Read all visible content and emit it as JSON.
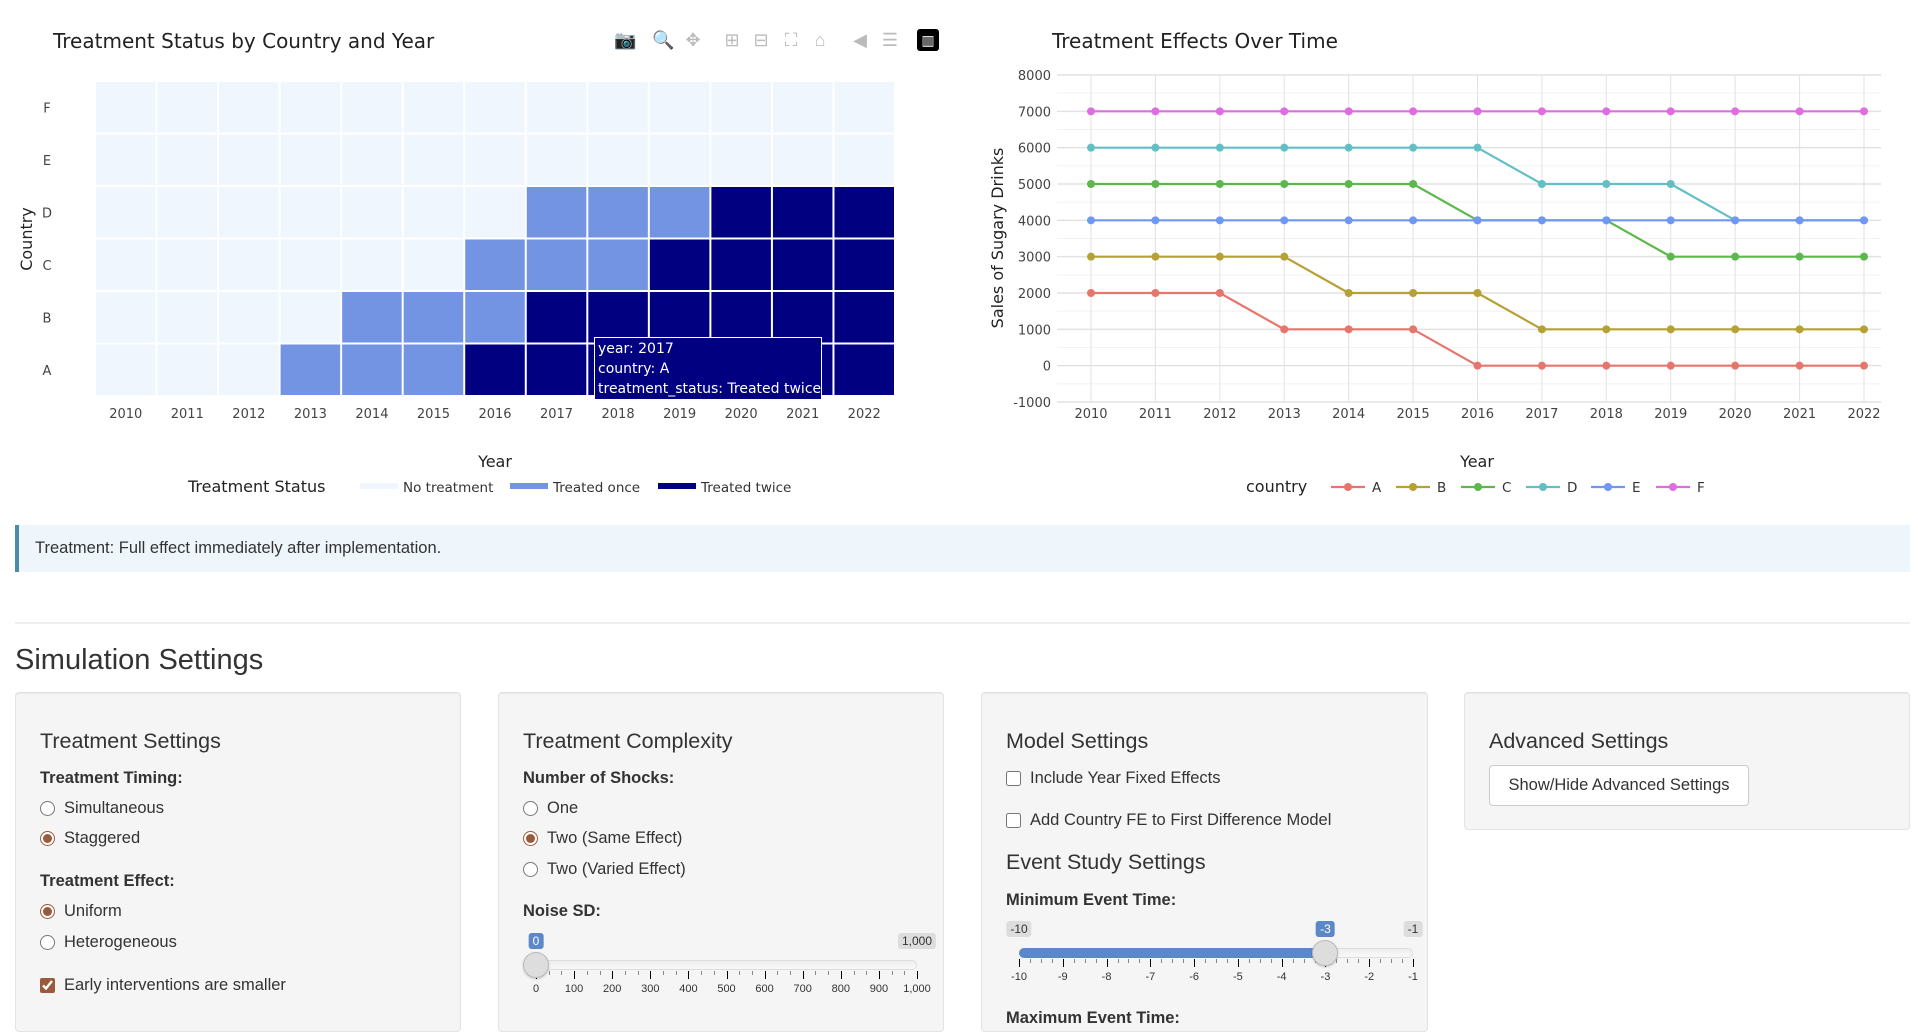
{
  "heatmap": {
    "title": "Treatment Status by Country and Year",
    "toolbar": [
      "camera-icon",
      "zoom-icon",
      "pan-icon",
      "zoom-in-icon",
      "zoom-out-icon",
      "autoscale-icon",
      "home-icon",
      "hover-closest-icon",
      "hover-compare-icon",
      "plotly-logo-icon"
    ],
    "tooltip": {
      "line1": "year: 2017",
      "line2": "country: A",
      "line3": "treatment_status: Treated twice"
    }
  },
  "lines": {
    "title": "Treatment Effects Over Time"
  },
  "chart_data": [
    {
      "type": "heatmap",
      "title": "Treatment Status by Country and Year",
      "xlabel": "Year",
      "ylabel": "Country",
      "x": [
        "2010",
        "2011",
        "2012",
        "2013",
        "2014",
        "2015",
        "2016",
        "2017",
        "2018",
        "2019",
        "2020",
        "2021",
        "2022"
      ],
      "y": [
        "A",
        "B",
        "C",
        "D",
        "E",
        "F"
      ],
      "legend_title": "Treatment Status",
      "levels": [
        "No treatment",
        "Treated once",
        "Treated twice"
      ],
      "colors": [
        "#f0f6fd",
        "#7294e3",
        "#000080"
      ],
      "z": [
        [
          0,
          0,
          0,
          1,
          1,
          1,
          2,
          2,
          2,
          2,
          2,
          2,
          2
        ],
        [
          0,
          0,
          0,
          0,
          1,
          1,
          1,
          2,
          2,
          2,
          2,
          2,
          2
        ],
        [
          0,
          0,
          0,
          0,
          0,
          0,
          1,
          1,
          1,
          2,
          2,
          2,
          2
        ],
        [
          0,
          0,
          0,
          0,
          0,
          0,
          0,
          1,
          1,
          1,
          2,
          2,
          2
        ],
        [
          0,
          0,
          0,
          0,
          0,
          0,
          0,
          0,
          0,
          0,
          0,
          0,
          0
        ],
        [
          0,
          0,
          0,
          0,
          0,
          0,
          0,
          0,
          0,
          0,
          0,
          0,
          0
        ]
      ]
    },
    {
      "type": "line",
      "title": "Treatment Effects Over Time",
      "xlabel": "Year",
      "ylabel": "Sales of Sugary Drinks",
      "ylim": [
        -1000,
        8000
      ],
      "yticks": [
        "8000",
        "7000",
        "6000",
        "5000",
        "4000",
        "3000",
        "2000",
        "1000",
        "0",
        "-1000"
      ],
      "x": [
        "2010",
        "2011",
        "2012",
        "2013",
        "2014",
        "2015",
        "2016",
        "2017",
        "2018",
        "2019",
        "2020",
        "2021",
        "2022"
      ],
      "legend_title": "country",
      "legend_position": "bottom",
      "grid": true,
      "series": [
        {
          "name": "A",
          "color": "#e8756c",
          "values": [
            2000,
            2000,
            2000,
            1000,
            1000,
            1000,
            0,
            0,
            0,
            0,
            0,
            0,
            0
          ]
        },
        {
          "name": "B",
          "color": "#b5a134",
          "values": [
            3000,
            3000,
            3000,
            3000,
            2000,
            2000,
            2000,
            1000,
            1000,
            1000,
            1000,
            1000,
            1000
          ]
        },
        {
          "name": "C",
          "color": "#5cb84a",
          "values": [
            5000,
            5000,
            5000,
            5000,
            5000,
            5000,
            4000,
            4000,
            4000,
            3000,
            3000,
            3000,
            3000
          ]
        },
        {
          "name": "D",
          "color": "#63bfc4",
          "values": [
            6000,
            6000,
            6000,
            6000,
            6000,
            6000,
            6000,
            5000,
            5000,
            5000,
            4000,
            4000,
            4000
          ]
        },
        {
          "name": "E",
          "color": "#6f97f3",
          "values": [
            4000,
            4000,
            4000,
            4000,
            4000,
            4000,
            4000,
            4000,
            4000,
            4000,
            4000,
            4000,
            4000
          ]
        },
        {
          "name": "F",
          "color": "#de6ee0",
          "values": [
            7000,
            7000,
            7000,
            7000,
            7000,
            7000,
            7000,
            7000,
            7000,
            7000,
            7000,
            7000,
            7000
          ]
        }
      ]
    }
  ],
  "info": "Treatment: Full effect immediately after implementation.",
  "section_title": "Simulation Settings",
  "treatment": {
    "title": "Treatment Settings",
    "timing_label": "Treatment Timing:",
    "timing_options": [
      "Simultaneous",
      "Staggered"
    ],
    "timing_selected": 1,
    "effect_label": "Treatment Effect:",
    "effect_options": [
      "Uniform",
      "Heterogeneous"
    ],
    "effect_selected": 0,
    "early_label": "Early interventions are smaller",
    "early_checked": true
  },
  "complexity": {
    "title": "Treatment Complexity",
    "shocks_label": "Number of Shocks:",
    "shocks_options": [
      "One",
      "Two (Same Effect)",
      "Two (Varied Effect)"
    ],
    "shocks_selected": 1,
    "noise_label": "Noise SD:",
    "noise": {
      "min_label": "0",
      "max_label": "1,000",
      "value_label": "0",
      "min": 0,
      "max": 1000,
      "value": 0,
      "ticks": [
        "0",
        "100",
        "200",
        "300",
        "400",
        "500",
        "600",
        "700",
        "800",
        "900",
        "1,000"
      ]
    }
  },
  "model": {
    "title": "Model Settings",
    "year_fe": "Include Year Fixed Effects",
    "country_fe": "Add Country FE to First Difference Model",
    "event_title": "Event Study Settings",
    "min_label": "Minimum Event Time:",
    "min_slider": {
      "min_label": "-10",
      "max_label": "-1",
      "value_label": "-3",
      "min": -10,
      "max": -1,
      "value": -3,
      "ticks": [
        "-10",
        "-9",
        "-8",
        "-7",
        "-6",
        "-5",
        "-4",
        "-3",
        "-2",
        "-1"
      ]
    },
    "max_label": "Maximum Event Time:"
  },
  "advanced": {
    "title": "Advanced Settings",
    "button": "Show/Hide Advanced Settings"
  }
}
